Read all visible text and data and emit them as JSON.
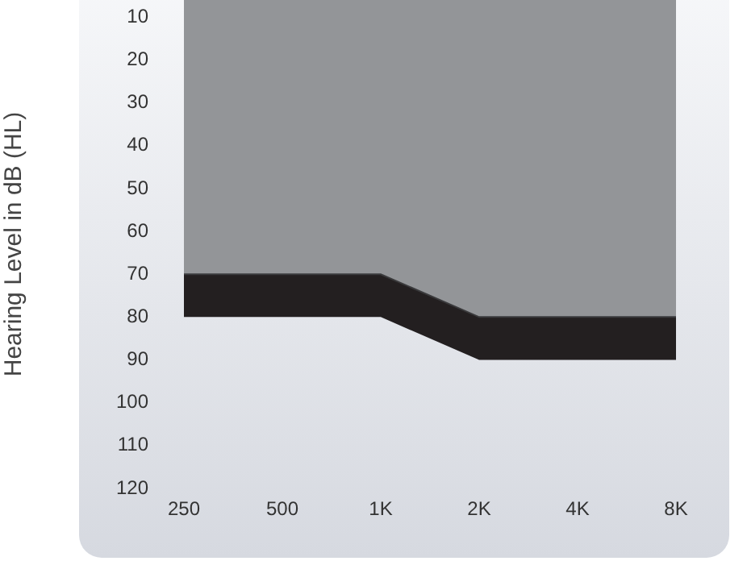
{
  "chart_data": {
    "type": "area",
    "ylabel": "Hearing Level in dB (HL)",
    "categories": [
      "250",
      "500",
      "1K",
      "2K",
      "4K",
      "8K"
    ],
    "stacked": true,
    "series": [
      {
        "color": "#939598",
        "values": [
          70,
          70,
          70,
          80,
          80,
          80
        ]
      },
      {
        "color": "#231f20",
        "values": [
          10,
          10,
          10,
          10,
          10,
          10
        ]
      }
    ],
    "ylim": [
      120,
      6
    ],
    "yticks": [
      10,
      20,
      30,
      40,
      50,
      60,
      70,
      80,
      90,
      100,
      110,
      120
    ],
    "grid": false,
    "legend": false,
    "marker": "none"
  }
}
